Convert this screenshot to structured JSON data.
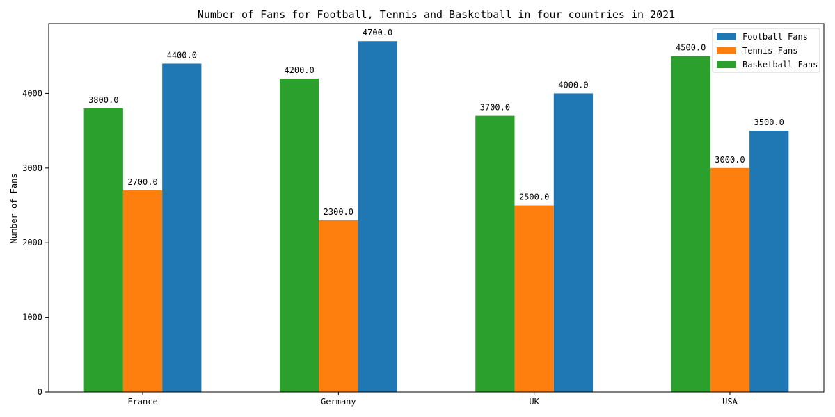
{
  "chart_data": {
    "type": "bar",
    "title": "Number of Fans for Football, Tennis and Basketball in four countries in 2021",
    "xlabel": "",
    "ylabel": "Number of Fans",
    "categories": [
      "France",
      "Germany",
      "UK",
      "USA"
    ],
    "series": [
      {
        "name": "Basketball Fans",
        "color": "#2ca02c",
        "values": [
          3800,
          4200,
          3700,
          4500
        ]
      },
      {
        "name": "Tennis Fans",
        "color": "#ff7f0e",
        "values": [
          2700,
          2300,
          2500,
          3000
        ]
      },
      {
        "name": "Football Fans",
        "color": "#1f77b4",
        "values": [
          4400,
          4700,
          4000,
          3500
        ]
      }
    ],
    "bar_labels": [
      [
        "3800.0",
        "4200.0",
        "3700.0",
        "4500.0"
      ],
      [
        "2700.0",
        "2300.0",
        "2500.0",
        "3000.0"
      ],
      [
        "4400.0",
        "4700.0",
        "4000.0",
        "3500.0"
      ]
    ],
    "legend_order": [
      "Football Fans",
      "Tennis Fans",
      "Basketball Fans"
    ],
    "legend_position": "top-right",
    "ylim": [
      0,
      4935
    ],
    "yticks": [
      0,
      1000,
      2000,
      3000,
      4000
    ],
    "ytick_labels": [
      "0",
      "1000",
      "2000",
      "3000",
      "4000"
    ],
    "grid": false
  }
}
